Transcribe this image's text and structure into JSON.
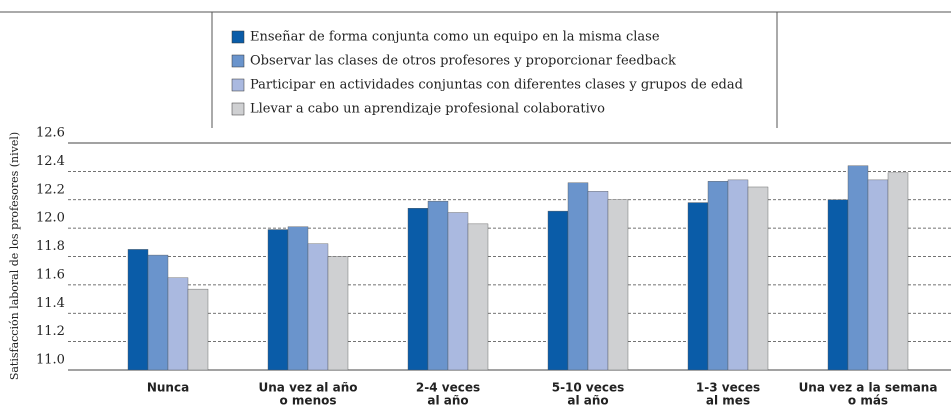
{
  "chart_data": {
    "type": "bar",
    "y_label": "Satisfacción laboral de los profesores (nivel)",
    "categories": [
      [
        "Nunca"
      ],
      [
        "Una vez al año",
        "o menos"
      ],
      [
        "2-4 veces",
        "al año"
      ],
      [
        "5-10 veces",
        "al año"
      ],
      [
        "1-3 veces",
        "al mes"
      ],
      [
        "Una vez a la semana",
        "o más"
      ]
    ],
    "series": [
      {
        "name": "Enseñar de forma conjunta como un equipo en la misma clase",
        "color": "#0a5ca8",
        "values": [
          11.85,
          11.99,
          12.14,
          12.12,
          12.18,
          12.2
        ]
      },
      {
        "name": "Observar las clases de otros profesores y proporcionar feedback",
        "color": "#6a94cc",
        "values": [
          11.81,
          12.01,
          12.19,
          12.32,
          12.33,
          12.44
        ]
      },
      {
        "name": "Participar en actividades conjuntas con diferentes clases y grupos de edad",
        "color": "#aab9e0",
        "values": [
          11.65,
          11.89,
          12.11,
          12.26,
          12.34,
          12.34
        ]
      },
      {
        "name": "Llevar a cabo un aprendizaje profesional colaborativo",
        "color": "#cfd0d2",
        "values": [
          11.57,
          11.8,
          12.03,
          12.2,
          12.29,
          12.39
        ]
      }
    ],
    "ylim": [
      11.0,
      12.6
    ],
    "yticks": [
      {
        "value": 11,
        "label": "11.0"
      },
      11.2,
      11.4,
      11.6,
      11.8,
      {
        "value": 12,
        "label": "12.0"
      },
      12.2,
      12.4,
      12.6
    ],
    "grid": true
  }
}
